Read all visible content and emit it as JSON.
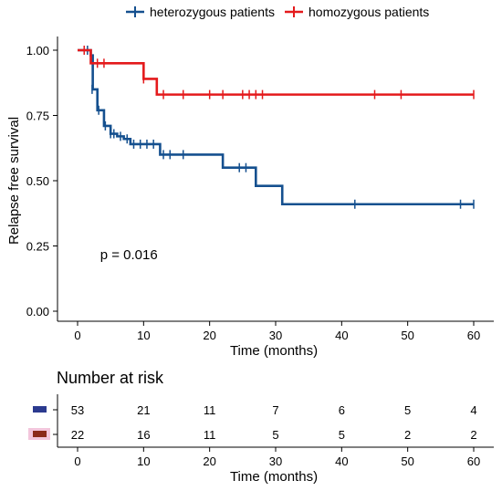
{
  "chart_data": [
    {
      "type": "line",
      "subtype": "kaplan-meier-step",
      "title": "",
      "xlabel": "Time (months)",
      "ylabel": "Relapse free survival",
      "xlim": [
        0,
        60
      ],
      "ylim": [
        0,
        1
      ],
      "xticks": [
        "0",
        "10",
        "20",
        "30",
        "40",
        "50",
        "60"
      ],
      "xtick_values": [
        0,
        10,
        20,
        30,
        40,
        50,
        60
      ],
      "yticks": [
        "0.00",
        "0.25",
        "0.50",
        "0.75",
        "1.00"
      ],
      "ytick_values": [
        0,
        0.25,
        0.5,
        0.75,
        1
      ],
      "grid": false,
      "legend_position": "top",
      "annotation": "p = 0.016",
      "annotation_at": [
        3,
        0.2
      ],
      "series": [
        {
          "name": "heterozygous patients",
          "color": "#15508f",
          "steps": [
            [
              0,
              1.0
            ],
            [
              2,
              0.98
            ],
            [
              2.3,
              0.85
            ],
            [
              3,
              0.77
            ],
            [
              4,
              0.71
            ],
            [
              5,
              0.68
            ],
            [
              6,
              0.67
            ],
            [
              7,
              0.66
            ],
            [
              8,
              0.64
            ],
            [
              12.5,
              0.6
            ],
            [
              22,
              0.55
            ],
            [
              27,
              0.48
            ],
            [
              31,
              0.41
            ],
            [
              60,
              0.41
            ]
          ],
          "censored": [
            [
              1.5,
              1.0
            ],
            [
              2.2,
              0.85
            ],
            [
              3.2,
              0.77
            ],
            [
              4.2,
              0.71
            ],
            [
              5,
              0.68
            ],
            [
              5.5,
              0.68
            ],
            [
              6.5,
              0.67
            ],
            [
              7.5,
              0.66
            ],
            [
              8.5,
              0.64
            ],
            [
              9.5,
              0.64
            ],
            [
              10.5,
              0.64
            ],
            [
              11.5,
              0.64
            ],
            [
              13,
              0.6
            ],
            [
              14,
              0.6
            ],
            [
              16,
              0.6
            ],
            [
              24.5,
              0.55
            ],
            [
              25.5,
              0.55
            ],
            [
              42,
              0.41
            ],
            [
              58,
              0.41
            ],
            [
              60,
              0.41
            ]
          ]
        },
        {
          "name": "homozygous patients",
          "color": "#e41a1c",
          "steps": [
            [
              0,
              1.0
            ],
            [
              2,
              0.95
            ],
            [
              10,
              0.89
            ],
            [
              12,
              0.83
            ],
            [
              60,
              0.83
            ]
          ],
          "censored": [
            [
              1,
              1.0
            ],
            [
              3,
              0.95
            ],
            [
              4,
              0.95
            ],
            [
              10,
              0.89
            ],
            [
              13,
              0.83
            ],
            [
              16,
              0.83
            ],
            [
              20,
              0.83
            ],
            [
              22,
              0.83
            ],
            [
              25,
              0.83
            ],
            [
              26,
              0.83
            ],
            [
              27,
              0.83
            ],
            [
              28,
              0.83
            ],
            [
              45,
              0.83
            ],
            [
              49,
              0.83
            ],
            [
              60,
              0.83
            ]
          ]
        }
      ]
    },
    {
      "type": "table",
      "title": "Number at risk",
      "xlabel": "Time (months)",
      "xticks": [
        "0",
        "10",
        "20",
        "30",
        "40",
        "50",
        "60"
      ],
      "xtick_values": [
        0,
        10,
        20,
        30,
        40,
        50,
        60
      ],
      "rows": [
        {
          "name": "heterozygous patients",
          "color": "#2b3a8f",
          "values": [
            "53",
            "21",
            "11",
            "7",
            "6",
            "5",
            "4"
          ]
        },
        {
          "name": "homozygous patients",
          "color": "#8b2a1a",
          "values": [
            "22",
            "16",
            "11",
            "5",
            "5",
            "2",
            "2"
          ]
        }
      ]
    }
  ]
}
